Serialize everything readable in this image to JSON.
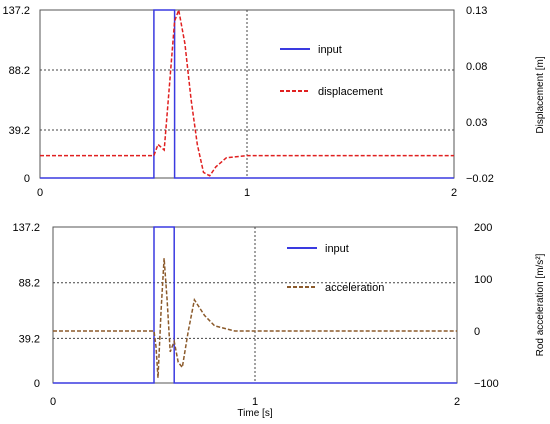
{
  "chart_data": [
    {
      "type": "line",
      "xlim": [
        0,
        2
      ],
      "x_ticks": [
        "0",
        "1",
        "2"
      ],
      "left_ylim": [
        0,
        137.2
      ],
      "left_ticks": [
        "137.2",
        "88.2",
        "39.2",
        "0"
      ],
      "left_tick_values": [
        137.2,
        88.2,
        39.2,
        0
      ],
      "right_ylim": [
        -0.02,
        0.13
      ],
      "right_ticks": [
        "0.13",
        "0.08",
        "0.03",
        "−0.02"
      ],
      "right_tick_values": [
        0.13,
        0.08,
        0.03,
        -0.02
      ],
      "ylabel_right": "Displacement [m]",
      "grid": "dotted at inner ticks",
      "legend_position": "top-right",
      "series": [
        {
          "name": "input",
          "axis": "left",
          "color": "#3a3ae0",
          "style": "solid",
          "x": [
            0,
            0.55,
            0.55,
            0.65,
            0.65,
            2
          ],
          "y": [
            0,
            0,
            137.2,
            137.2,
            0,
            0
          ]
        },
        {
          "name": "displacement",
          "axis": "right",
          "color": "#e02020",
          "style": "dashed",
          "x": [
            0,
            0.55,
            0.57,
            0.6,
            0.62,
            0.65,
            0.67,
            0.7,
            0.73,
            0.76,
            0.79,
            0.82,
            0.85,
            0.9,
            1.0,
            2.0
          ],
          "y": [
            0.0,
            0.0,
            0.01,
            0.005,
            0.05,
            0.12,
            0.13,
            0.1,
            0.05,
            0.01,
            -0.015,
            -0.018,
            -0.01,
            -0.002,
            0.0,
            0.0
          ]
        }
      ]
    },
    {
      "type": "line",
      "xlim": [
        0,
        2
      ],
      "x_ticks": [
        "0",
        "1",
        "2"
      ],
      "left_ylim": [
        0,
        137.2
      ],
      "left_ticks": [
        "137.2",
        "88.2",
        "39.2",
        "0"
      ],
      "left_tick_values": [
        137.2,
        88.2,
        39.2,
        0
      ],
      "right_ylim": [
        -100,
        200
      ],
      "right_ticks": [
        "200",
        "100",
        "0",
        "−100"
      ],
      "right_tick_values": [
        200,
        100,
        0,
        -100
      ],
      "ylabel_right": "Rod acceleration [m/s²]",
      "xlabel": "Time [s]",
      "grid": "dotted at inner ticks",
      "legend_position": "top-right",
      "series": [
        {
          "name": "input",
          "axis": "left",
          "color": "#3a3ae0",
          "style": "solid",
          "x": [
            0,
            0.5,
            0.5,
            0.6,
            0.6,
            2
          ],
          "y": [
            0,
            0,
            137.2,
            137.2,
            0,
            0
          ]
        },
        {
          "name": "acceleration",
          "axis": "right",
          "color": "#8b5a2b",
          "style": "dashed",
          "x": [
            0,
            0.5,
            0.51,
            0.52,
            0.535,
            0.55,
            0.565,
            0.58,
            0.6,
            0.62,
            0.64,
            0.67,
            0.7,
            0.75,
            0.8,
            0.9,
            1.0,
            2.0
          ],
          "y": [
            0,
            0,
            -30,
            -90,
            40,
            140,
            60,
            -40,
            -20,
            -60,
            -70,
            0,
            60,
            30,
            10,
            0,
            0,
            0
          ]
        }
      ]
    }
  ]
}
